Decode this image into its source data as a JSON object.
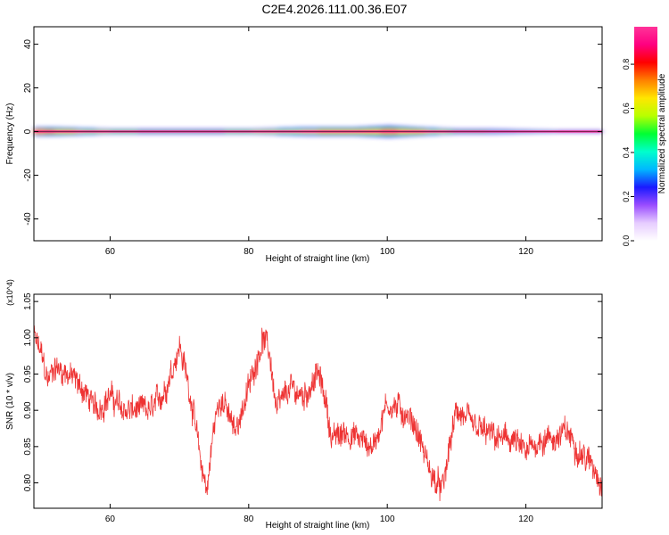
{
  "title": "C2E4.2026.111.00.36.E07",
  "chart_data": [
    {
      "type": "heatmap",
      "xlabel": "Height of straight line (km)",
      "ylabel": "Frequency (Hz)",
      "xlim": [
        49,
        131
      ],
      "ylim": [
        -50,
        48
      ],
      "xticks": [
        60,
        80,
        100,
        120
      ],
      "yticks": [
        -40,
        -20,
        0,
        20,
        40
      ],
      "ytick_labels": [
        "-40",
        "-20",
        "0",
        "20",
        "40"
      ],
      "colorbar": {
        "label": "Normalized spectral amplitude",
        "range": [
          0,
          0.97
        ],
        "ticks": [
          0.0,
          0.2,
          0.4,
          0.6,
          0.8
        ],
        "tick_labels": [
          "0.0",
          "0.2",
          "0.4",
          "0.6",
          "0.8"
        ],
        "colors": [
          "#ffffff",
          "#e6ccff",
          "#9a4dff",
          "#1a1aff",
          "#00b8ff",
          "#00ffcc",
          "#00ff33",
          "#b8ff00",
          "#ffe600",
          "#ff8000",
          "#ff0000",
          "#ff0080",
          "#ff3399"
        ]
      },
      "band_center_hz": 0,
      "band_profile": [
        {
          "x": 49,
          "halfwidth": 3,
          "peak": 0.9
        },
        {
          "x": 51,
          "halfwidth": 3,
          "peak": 0.8
        },
        {
          "x": 60,
          "halfwidth": 2,
          "peak": 0.6
        },
        {
          "x": 70,
          "halfwidth": 2,
          "peak": 0.55
        },
        {
          "x": 80,
          "halfwidth": 2,
          "peak": 0.6
        },
        {
          "x": 88,
          "halfwidth": 3,
          "peak": 0.7
        },
        {
          "x": 95,
          "halfwidth": 3,
          "peak": 0.75
        },
        {
          "x": 100,
          "halfwidth": 4,
          "peak": 0.8
        },
        {
          "x": 104,
          "halfwidth": 3,
          "peak": 0.75
        },
        {
          "x": 110,
          "halfwidth": 2,
          "peak": 0.55
        },
        {
          "x": 115,
          "halfwidth": 2,
          "peak": 0.5
        },
        {
          "x": 125,
          "halfwidth": 1,
          "peak": 0.45
        },
        {
          "x": 131,
          "halfwidth": 1,
          "peak": 0.45
        }
      ]
    },
    {
      "type": "line",
      "xlabel": "Height of straight line (km)",
      "ylabel": "SNR (10 * v/v)",
      "yscale_label": "(x10^4)",
      "xlim": [
        49,
        131
      ],
      "ylim": [
        0.765,
        1.06
      ],
      "xticks": [
        60,
        80,
        100,
        120
      ],
      "yticks": [
        0.8,
        0.85,
        0.9,
        0.95,
        1.0,
        1.05
      ],
      "ytick_labels": [
        "0.80",
        "0.85",
        "0.90",
        "0.95",
        "1.00",
        "1.05"
      ],
      "series": [
        {
          "name": "SNR",
          "color": "#ee3333",
          "x": [
            49,
            50,
            51,
            52,
            54,
            56,
            58,
            60,
            62,
            64,
            66,
            68,
            70,
            71,
            72,
            73,
            74,
            75,
            76,
            78,
            80,
            82,
            83,
            84,
            86,
            88,
            90,
            91,
            92,
            94,
            96,
            98,
            100,
            102,
            104,
            106,
            107,
            108,
            109,
            110,
            112,
            114,
            116,
            118,
            120,
            122,
            124,
            126,
            128,
            130,
            131
          ],
          "y": [
            1.0,
            0.98,
            0.94,
            0.96,
            0.95,
            0.93,
            0.9,
            0.92,
            0.9,
            0.9,
            0.9,
            0.93,
            0.99,
            0.95,
            0.9,
            0.83,
            0.79,
            0.88,
            0.92,
            0.87,
            0.93,
            1.0,
            0.98,
            0.9,
            0.93,
            0.92,
            0.95,
            0.92,
            0.86,
            0.87,
            0.86,
            0.85,
            0.91,
            0.9,
            0.88,
            0.82,
            0.8,
            0.79,
            0.85,
            0.9,
            0.88,
            0.87,
            0.86,
            0.86,
            0.84,
            0.86,
            0.86,
            0.87,
            0.84,
            0.82,
            0.8
          ]
        }
      ]
    }
  ]
}
